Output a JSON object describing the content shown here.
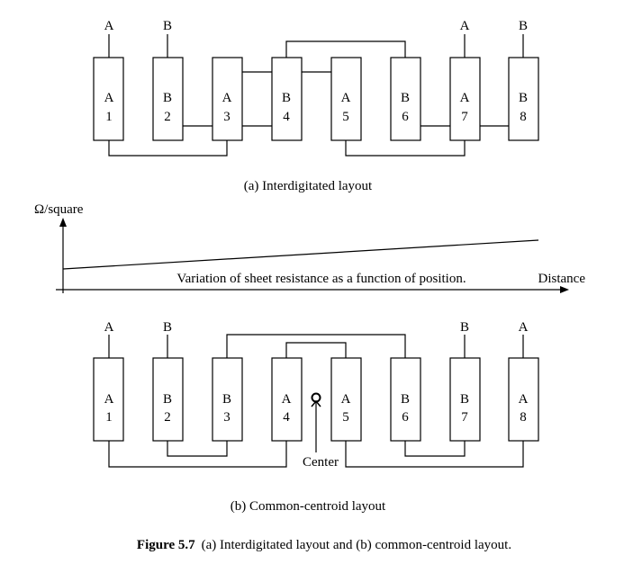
{
  "top": {
    "caption": "(a) Interdigitated layout",
    "terminals": [
      "A",
      "B",
      "A",
      "B"
    ],
    "resistors": [
      {
        "letter": "A",
        "num": "1"
      },
      {
        "letter": "B",
        "num": "2"
      },
      {
        "letter": "A",
        "num": "3"
      },
      {
        "letter": "B",
        "num": "4"
      },
      {
        "letter": "A",
        "num": "5"
      },
      {
        "letter": "B",
        "num": "6"
      },
      {
        "letter": "A",
        "num": "7"
      },
      {
        "letter": "B",
        "num": "8"
      }
    ]
  },
  "graph": {
    "y_label": "Ω/square",
    "x_label": "Distance",
    "annotation": "Variation of sheet resistance as a function of position."
  },
  "bottom": {
    "caption": "(b) Common-centroid layout",
    "center_label": "Center",
    "terminals": [
      "A",
      "B",
      "B",
      "A"
    ],
    "resistors": [
      {
        "letter": "A",
        "num": "1"
      },
      {
        "letter": "B",
        "num": "2"
      },
      {
        "letter": "B",
        "num": "3"
      },
      {
        "letter": "A",
        "num": "4"
      },
      {
        "letter": "A",
        "num": "5"
      },
      {
        "letter": "B",
        "num": "6"
      },
      {
        "letter": "B",
        "num": "7"
      },
      {
        "letter": "A",
        "num": "8"
      }
    ]
  },
  "figure": {
    "number": "Figure 5.7",
    "text": "(a) Interdigitated layout and (b) common-centroid layout."
  }
}
